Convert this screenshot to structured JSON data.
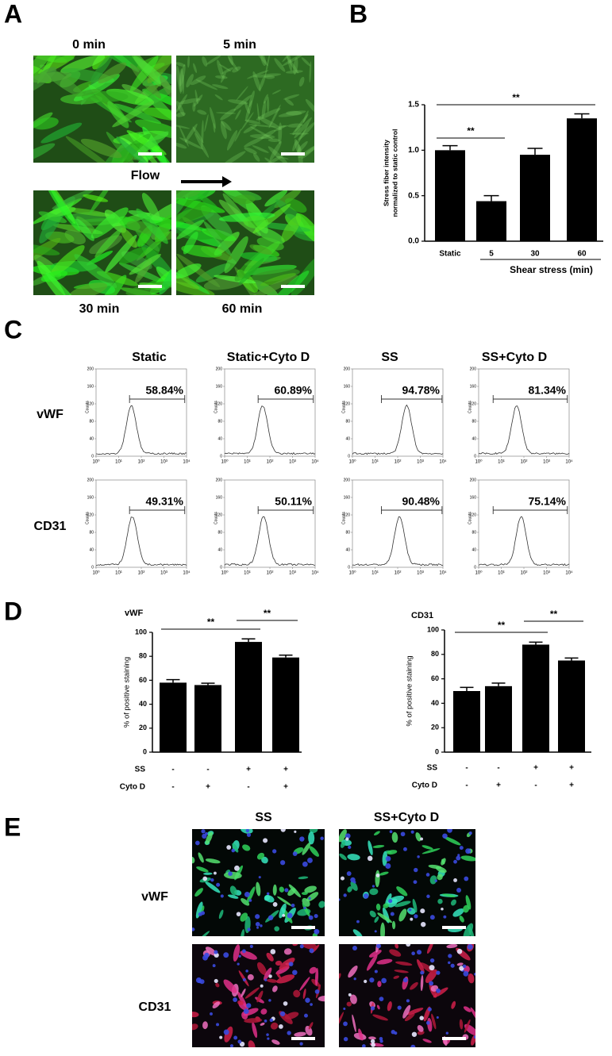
{
  "panel_labels": [
    "A",
    "B",
    "C",
    "D",
    "E"
  ],
  "panel_a": {
    "time_labels": [
      "0 min",
      "5 min",
      "30 min",
      "60 min"
    ],
    "flow_label": "Flow"
  },
  "chart_data": [
    {
      "type": "bar",
      "categories": [
        "Static",
        "5",
        "30",
        "60"
      ],
      "values": [
        1.0,
        0.44,
        0.95,
        1.35
      ],
      "errors": [
        0.05,
        0.06,
        0.07,
        0.05
      ],
      "color": "#000000",
      "ylabel_lines": [
        "Stress fiber intensity",
        "normalized to static control"
      ],
      "x_group_label": "Shear stress (min)",
      "ylim": [
        0,
        1.5
      ],
      "yticks": [
        {
          "value": 0,
          "label": "0.0"
        },
        {
          "value": 0.5,
          "label": "0.5"
        },
        {
          "value": 1,
          "label": "1.0"
        },
        {
          "value": 1.5,
          "label": "1.5"
        }
      ],
      "annotations": [
        {
          "text": "**",
          "between": [
            0,
            1
          ]
        },
        {
          "text": "**",
          "between": [
            0,
            3
          ]
        }
      ]
    },
    {
      "type": "bar",
      "title": "vWF",
      "values": [
        58,
        56,
        92,
        79
      ],
      "errors": [
        2.5,
        1.5,
        2.5,
        2
      ],
      "color": "#000000",
      "ylabel": "% of positive staining",
      "ylim": [
        0,
        100
      ],
      "yticks": [
        0,
        20,
        40,
        60,
        80,
        100
      ],
      "conditions": [
        {
          "name": "SS",
          "labels": [
            "-",
            "-",
            "+",
            "+"
          ]
        },
        {
          "name": "Cyto D",
          "labels": [
            "-",
            "+",
            "-",
            "+"
          ]
        }
      ],
      "annotations": [
        {
          "text": "**",
          "between": [
            0,
            2
          ]
        },
        {
          "text": "**",
          "between": [
            2,
            3
          ]
        }
      ]
    },
    {
      "type": "bar",
      "title": "CD31",
      "values": [
        50,
        54,
        88,
        75
      ],
      "errors": [
        3,
        2.5,
        2,
        2
      ],
      "color": "#000000",
      "ylabel": "% of positive staining",
      "ylim": [
        0,
        100
      ],
      "yticks": [
        0,
        20,
        40,
        60,
        80,
        100
      ],
      "conditions": [
        {
          "name": "SS",
          "labels": [
            "-",
            "-",
            "+",
            "+"
          ]
        },
        {
          "name": "Cyto D",
          "labels": [
            "-",
            "+",
            "-",
            "+"
          ]
        }
      ],
      "annotations": [
        {
          "text": "**",
          "between": [
            0,
            2
          ]
        },
        {
          "text": "**",
          "between": [
            2,
            3
          ]
        }
      ]
    }
  ],
  "panel_c": {
    "columns": [
      "Static",
      "Static+Cyto D",
      "SS",
      "SS+Cyto D"
    ],
    "rows": [
      "vWF",
      "CD31"
    ],
    "percentages": [
      [
        "58.84%",
        "60.89%",
        "94.78%",
        "81.34%"
      ],
      [
        "49.31%",
        "50.11%",
        "90.48%",
        "75.14%"
      ]
    ],
    "ylabel": "Counts",
    "ylim": [
      0,
      200
    ],
    "yticks": [
      0,
      40,
      80,
      120,
      160,
      200
    ],
    "xlim": [
      1,
      10000
    ],
    "xticks": [
      {
        "value": 1,
        "label": "10⁰"
      },
      {
        "value": 10,
        "label": "10¹"
      },
      {
        "value": 100,
        "label": "10²"
      },
      {
        "value": 1000,
        "label": "10³"
      },
      {
        "value": 10000,
        "label": "10⁴"
      }
    ]
  },
  "panel_e": {
    "columns": [
      "SS",
      "SS+Cyto D"
    ],
    "rows": [
      "vWF",
      "CD31"
    ]
  }
}
